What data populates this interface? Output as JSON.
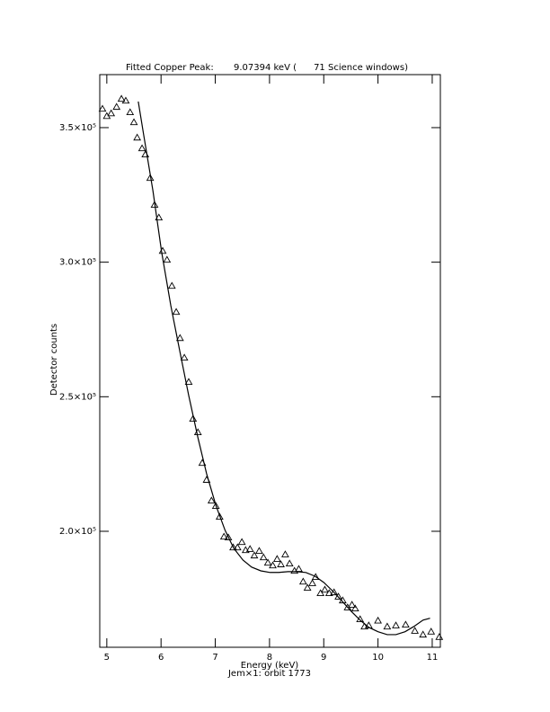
{
  "chart_data": {
    "type": "scatter",
    "title": "Fitted Copper Peak:       9.07394 keV (      71 Science windows)",
    "x_label": "Energy (keV)",
    "subtitle": "Jem×1: orbit 1773",
    "y_label": "Detector counts",
    "xlim": [
      4.87,
      11.15
    ],
    "xticks": [
      5,
      6,
      7,
      8,
      9,
      10,
      11
    ],
    "ylim": [
      156900,
      369700
    ],
    "yticks": [
      {
        "value": 200000,
        "label": "2.0×10⁵"
      },
      {
        "value": 250000,
        "label": "2.5×10⁵"
      },
      {
        "value": 300000,
        "label": "3.0×10⁵"
      },
      {
        "value": 350000,
        "label": "3.5×10⁵"
      }
    ],
    "grid": false,
    "series": [
      {
        "marker": "triangle",
        "color": "#000000",
        "x": [
          4.92,
          5.0,
          5.08,
          5.18,
          5.27,
          5.35,
          5.43,
          5.5,
          5.56,
          5.65,
          5.71,
          5.8,
          5.88,
          5.96,
          6.03,
          6.11,
          6.2,
          6.28,
          6.35,
          6.43,
          6.51,
          6.59,
          6.68,
          6.76,
          6.84,
          6.93,
          7.01,
          7.08,
          7.16,
          7.24,
          7.33,
          7.41,
          7.49,
          7.56,
          7.64,
          7.72,
          7.81,
          7.89,
          7.97,
          8.06,
          8.14,
          8.21,
          8.29,
          8.37,
          8.46,
          8.54,
          8.62,
          8.7,
          8.79,
          8.85,
          8.94,
          9.02,
          9.1,
          9.19,
          9.27,
          9.35,
          9.44,
          9.52,
          9.58,
          9.67,
          9.75,
          9.83,
          10.0,
          10.17,
          10.33,
          10.51,
          10.68,
          10.83,
          10.98,
          11.13
        ],
        "values": [
          357000,
          354300,
          355300,
          357700,
          360700,
          360000,
          355700,
          352000,
          346300,
          342300,
          340000,
          331300,
          321300,
          316600,
          304200,
          300900,
          291200,
          281500,
          271800,
          264500,
          255500,
          241800,
          236800,
          225400,
          219100,
          211400,
          209400,
          205400,
          198000,
          197700,
          194000,
          194000,
          196000,
          193000,
          193400,
          191000,
          192700,
          190300,
          188300,
          187300,
          189700,
          187700,
          191400,
          188000,
          185300,
          186000,
          181300,
          179000,
          180700,
          183000,
          177000,
          178300,
          177000,
          177300,
          175700,
          174300,
          171700,
          172700,
          171300,
          167300,
          164600,
          165000,
          166800,
          164600,
          165000,
          165300,
          163000,
          161600,
          162700,
          160700
        ]
      },
      {
        "marker": "line",
        "color": "#000000",
        "x": [
          5.58,
          5.68,
          5.85,
          6.01,
          6.18,
          6.35,
          6.51,
          6.68,
          6.84,
          7.01,
          7.18,
          7.34,
          7.51,
          7.67,
          7.84,
          8.01,
          8.17,
          8.34,
          8.5,
          8.67,
          8.84,
          9.0,
          9.17,
          9.34,
          9.5,
          9.67,
          9.83,
          10.0,
          10.17,
          10.33,
          10.5,
          10.66,
          10.83,
          10.96
        ],
        "values": [
          359700,
          347300,
          326600,
          303900,
          283900,
          266500,
          250500,
          234800,
          221400,
          209700,
          200400,
          193700,
          189300,
          186700,
          185300,
          184700,
          184700,
          185000,
          185000,
          184700,
          183300,
          181000,
          177700,
          174000,
          170400,
          167000,
          164300,
          162700,
          161600,
          161600,
          162700,
          164600,
          167000,
          167700
        ]
      }
    ]
  }
}
